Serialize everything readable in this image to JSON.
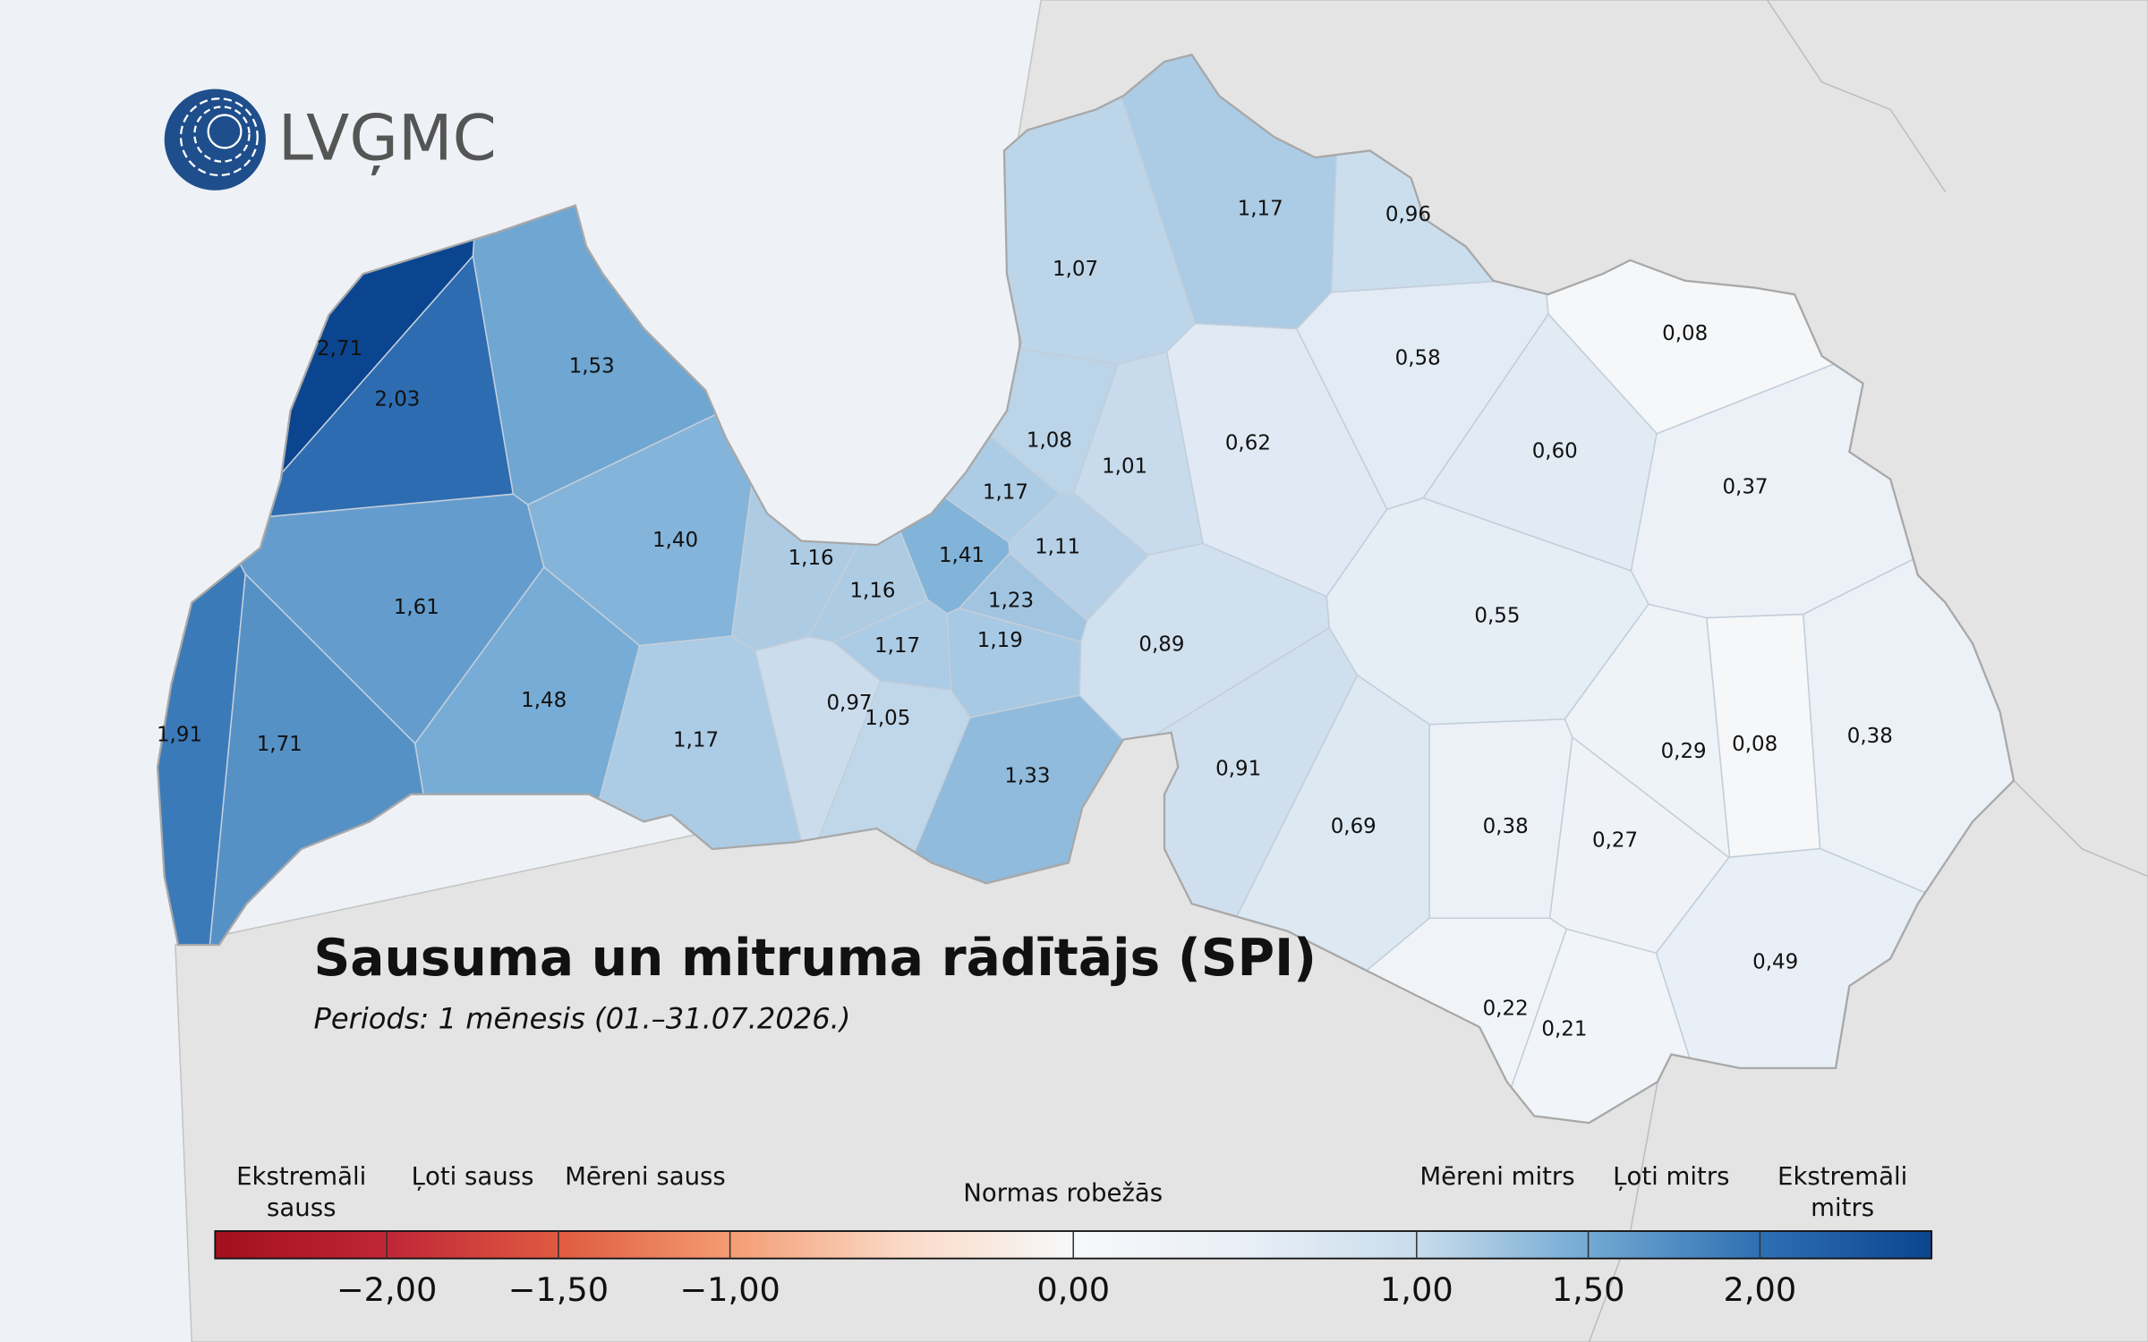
{
  "logo": {
    "text": "LVĢMC"
  },
  "title": "Sausuma un mitruma rādītājs (SPI)",
  "subtitle": "Periods: 1 mēnesis (01.–31.07.2026.)",
  "regions": [
    {
      "value": 2.71,
      "label": "2,71"
    },
    {
      "value": 2.03,
      "label": "2,03"
    },
    {
      "value": 1.53,
      "label": "1,53"
    },
    {
      "value": 1.61,
      "label": "1,61"
    },
    {
      "value": 1.4,
      "label": "1,40"
    },
    {
      "value": 1.91,
      "label": "1,91"
    },
    {
      "value": 1.71,
      "label": "1,71"
    },
    {
      "value": 1.48,
      "label": "1,48"
    },
    {
      "value": 1.17,
      "label": "1,17"
    },
    {
      "value": 1.16,
      "label": "1,16"
    },
    {
      "value": 1.16,
      "label": "1,16"
    },
    {
      "value": 1.41,
      "label": "1,41"
    },
    {
      "value": 1.17,
      "label": "1,17"
    },
    {
      "value": 0.97,
      "label": "0,97"
    },
    {
      "value": 1.05,
      "label": "1,05"
    },
    {
      "value": 1.19,
      "label": "1,19"
    },
    {
      "value": 1.23,
      "label": "1,23"
    },
    {
      "value": 1.11,
      "label": "1,11"
    },
    {
      "value": 1.17,
      "label": "1,17"
    },
    {
      "value": 1.08,
      "label": "1,08"
    },
    {
      "value": 1.01,
      "label": "1,01"
    },
    {
      "value": 1.07,
      "label": "1,07"
    },
    {
      "value": 1.17,
      "label": "1,17"
    },
    {
      "value": 0.96,
      "label": "0,96"
    },
    {
      "value": 0.62,
      "label": "0,62"
    },
    {
      "value": 0.58,
      "label": "0,58"
    },
    {
      "value": 0.08,
      "label": "0,08"
    },
    {
      "value": 0.6,
      "label": "0,60"
    },
    {
      "value": 0.37,
      "label": "0,37"
    },
    {
      "value": 0.55,
      "label": "0,55"
    },
    {
      "value": 0.89,
      "label": "0,89"
    },
    {
      "value": 1.33,
      "label": "1,33"
    },
    {
      "value": 0.91,
      "label": "0,91"
    },
    {
      "value": 0.69,
      "label": "0,69"
    },
    {
      "value": 0.38,
      "label": "0,38"
    },
    {
      "value": 0.27,
      "label": "0,27"
    },
    {
      "value": 0.29,
      "label": "0,29"
    },
    {
      "value": 0.08,
      "label": "0,08"
    },
    {
      "value": 0.38,
      "label": "0,38"
    },
    {
      "value": 0.49,
      "label": "0,49"
    },
    {
      "value": 0.22,
      "label": "0,22"
    },
    {
      "value": 0.21,
      "label": "0,21"
    }
  ],
  "legend": {
    "categories": [
      "Ekstremāli sauss",
      "Ļoti sauss",
      "Mēreni sauss",
      "Normas robežās",
      "Mēreni mitrs",
      "Ļoti mitrs",
      "Ekstremāli mitrs"
    ],
    "lim": [
      -2.5,
      2.5
    ],
    "ticks": [
      {
        "value": -2,
        "label": "−2,00"
      },
      {
        "value": -1.5,
        "label": "−1,50"
      },
      {
        "value": -1,
        "label": "−1,00"
      },
      {
        "value": 0,
        "label": "0,00"
      },
      {
        "value": 1,
        "label": "1,00"
      },
      {
        "value": 1.5,
        "label": "1,50"
      },
      {
        "value": 2,
        "label": "2,00"
      }
    ],
    "colors": [
      "#a30f1d",
      "#c02637",
      "#df5a41",
      "#f49c73",
      "#fbd9c6",
      "#f7f8fa",
      "#e8eff6",
      "#c9dcec",
      "#73aad4",
      "#2f6fb3",
      "#0b4590"
    ]
  }
}
